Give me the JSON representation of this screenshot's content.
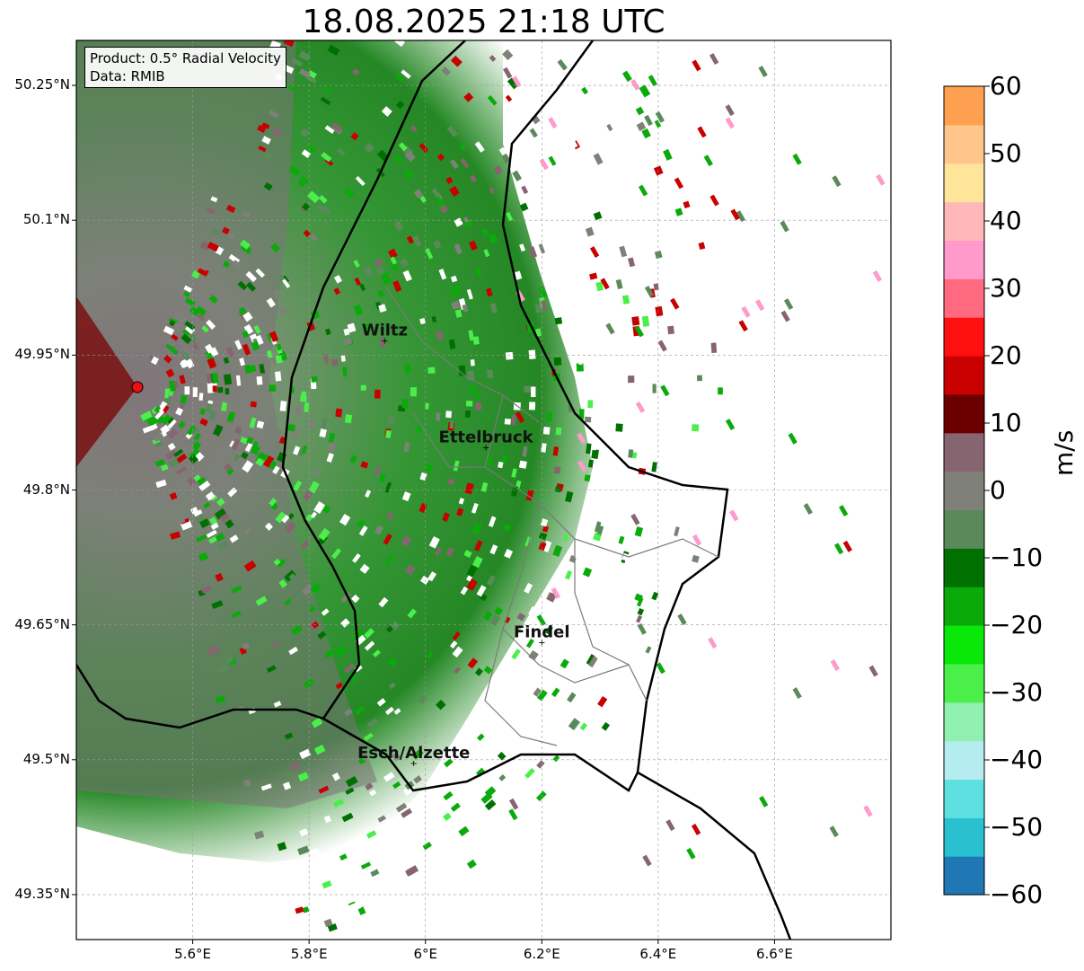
{
  "title": "18.08.2025 21:18 UTC",
  "info": {
    "product": "Product: 0.5° Radial Velocity",
    "data": "Data: RMIB"
  },
  "axes": {
    "lon_range": [
      5.4,
      6.8
    ],
    "lat_range": [
      49.3,
      50.3
    ],
    "lat_ticks": [
      50.25,
      50.1,
      49.95,
      49.8,
      49.65,
      49.5,
      49.35
    ],
    "lat_tick_labels": [
      "50.25°N",
      "50.1°N",
      "49.95°N",
      "49.8°N",
      "49.65°N",
      "49.5°N",
      "49.35°N"
    ],
    "lon_ticks": [
      5.6,
      5.8,
      6.0,
      6.2,
      6.4,
      6.6
    ],
    "lon_tick_labels": [
      "5.6°E",
      "5.8°E",
      "6°E",
      "6.2°E",
      "6.4°E",
      "6.6°E"
    ],
    "grid": true
  },
  "radar": {
    "lon": 5.505,
    "lat": 49.915
  },
  "cities": [
    {
      "name": "Wiltz",
      "lon": 5.93,
      "lat": 49.966
    },
    {
      "name": "Ettelbruck",
      "lon": 6.104,
      "lat": 49.847
    },
    {
      "name": "Findel",
      "lon": 6.2,
      "lat": 49.63
    },
    {
      "name": "Esch/Alzette",
      "lon": 5.98,
      "lat": 49.496
    }
  ],
  "colorbar": {
    "unit": "m/s",
    "range": [
      -60,
      60
    ],
    "tick_values": [
      60,
      50,
      40,
      30,
      20,
      10,
      0,
      -10,
      -20,
      -30,
      -40,
      -50,
      -60
    ],
    "tick_labels": [
      "60",
      "50",
      "40",
      "30",
      "20",
      "10",
      "0",
      "−10",
      "−20",
      "−30",
      "−40",
      "−50",
      "−60"
    ],
    "colors": [
      "#1f78b4",
      "#29c0cf",
      "#5fe0e0",
      "#b5ecef",
      "#8ff0b0",
      "#4aef4a",
      "#0ae80a",
      "#0aaa0a",
      "#007000",
      "#5a8a5a",
      "#7f8077",
      "#866470",
      "#6a0000",
      "#c80000",
      "#ff1010",
      "#ff6a80",
      "#ff9acb",
      "#ffb8b8",
      "#ffe59a",
      "#ffc58a",
      "#ffa050"
    ]
  }
}
